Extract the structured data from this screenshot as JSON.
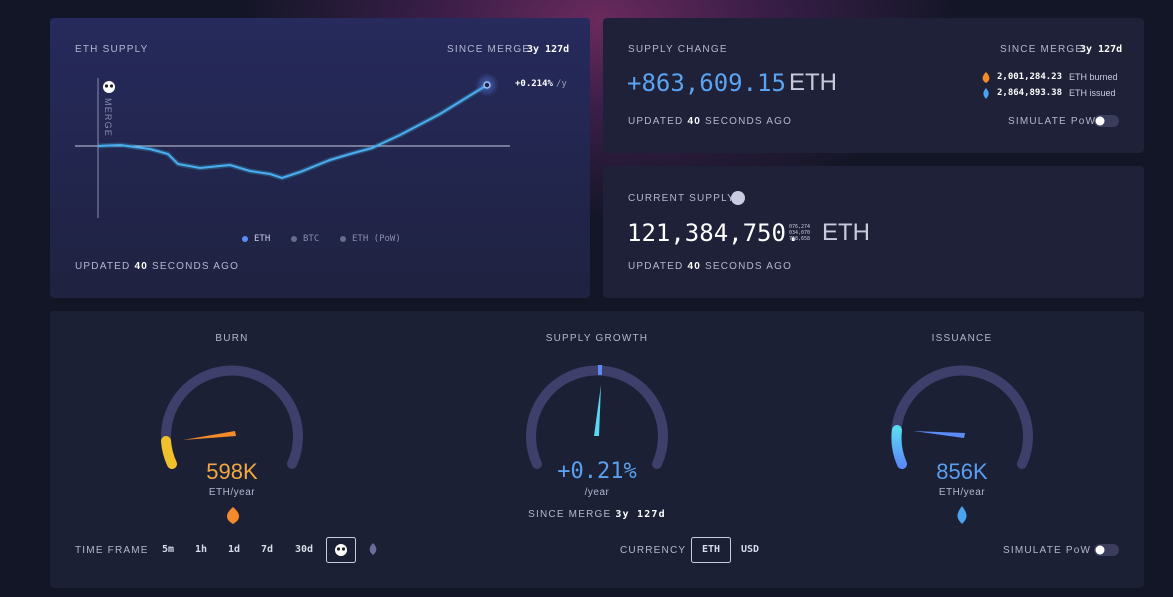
{
  "eth_supply": {
    "title": "ETH SUPPLY",
    "since_label": "SINCE MERGE",
    "since_value": "3y 127d",
    "rate": "+0.214%",
    "rate_unit": "/y",
    "merge_label": "MERGE",
    "legend": [
      "ETH",
      "BTC",
      "ETH (PoW)"
    ],
    "updated": {
      "prefix": "UPDATED",
      "value": "40",
      "suffix": "SECONDS AGO"
    }
  },
  "supply_change": {
    "title": "SUPPLY CHANGE",
    "since_label": "SINCE MERGE",
    "since_value": "3y 127d",
    "value": "+863,609.15",
    "unit": "ETH",
    "burned": {
      "value": "2,001,284.23",
      "label": "ETH burned"
    },
    "issued": {
      "value": "2,864,893.38",
      "label": "ETH issued"
    },
    "updated": {
      "prefix": "UPDATED",
      "value": "40",
      "suffix": "SECONDS AGO"
    },
    "simulate": "SIMULATE PoW"
  },
  "current_supply": {
    "title": "CURRENT SUPPLY",
    "value": "121,384,750.",
    "decimals": [
      "076,274",
      "034,070",
      "718,658"
    ],
    "unit": "ETH",
    "updated": {
      "prefix": "UPDATED",
      "value": "40",
      "suffix": "SECONDS AGO"
    }
  },
  "gauges": [
    {
      "title": "BURN",
      "value": "598K",
      "unit": "ETH/year"
    },
    {
      "title": "SUPPLY GROWTH",
      "value": "+0.21%",
      "unit": "/year",
      "since_label": "SINCE MERGE",
      "since_value": "3y 127d"
    },
    {
      "title": "ISSUANCE",
      "value": "856K",
      "unit": "ETH/year"
    }
  ],
  "controls": {
    "time_frame_label": "TIME FRAME",
    "time_frames": [
      "5m",
      "1h",
      "1d",
      "7d",
      "30d"
    ],
    "currency_label": "CURRENCY",
    "currencies": [
      "ETH",
      "USD"
    ],
    "simulate": "SIMULATE PoW"
  }
}
